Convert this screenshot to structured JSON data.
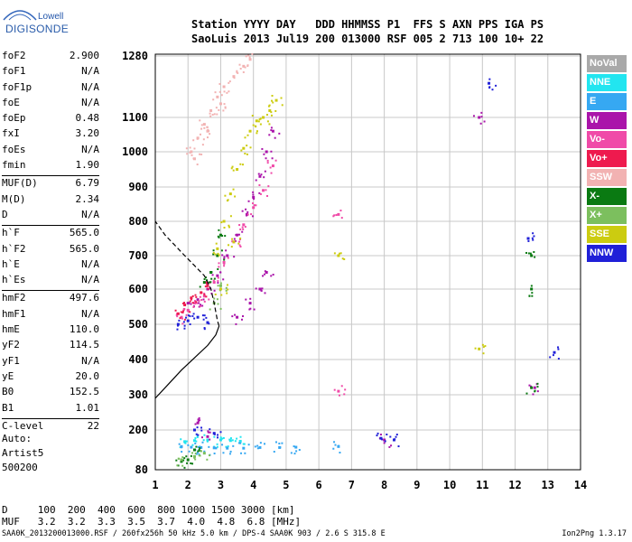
{
  "logo": {
    "line1": "Lowell",
    "line2": "DIGISONDE"
  },
  "header": {
    "row1": "Station YYYY DAY   DDD HHMMSS P1  FFS S AXN PPS IGA PS",
    "row2": "SaoLuis 2013 Jul19 200 013000 RSF 005 2 713 100 10+ 22"
  },
  "params": [
    [
      [
        "foF2",
        "2.900"
      ],
      [
        "foF1",
        "N/A"
      ],
      [
        "foF1p",
        "N/A"
      ],
      [
        "foE",
        "N/A"
      ],
      [
        "foEp",
        "0.48"
      ],
      [
        "fxI",
        "3.20"
      ],
      [
        "foEs",
        "N/A"
      ],
      [
        "fmin",
        "1.90"
      ]
    ],
    [
      [
        "MUF(D)",
        "6.79"
      ],
      [
        "M(D)",
        "2.34"
      ],
      [
        "D",
        "N/A"
      ]
    ],
    [
      [
        "h`F",
        "565.0"
      ],
      [
        "h`F2",
        "565.0"
      ],
      [
        "h`E",
        "N/A"
      ],
      [
        "h`Es",
        "N/A"
      ]
    ],
    [
      [
        "hmF2",
        "497.6"
      ],
      [
        "hmF1",
        "N/A"
      ],
      [
        "hmE",
        "110.0"
      ],
      [
        "yF2",
        "114.5"
      ],
      [
        "yF1",
        "N/A"
      ],
      [
        "yE",
        "20.0"
      ],
      [
        "B0",
        "152.5"
      ],
      [
        "B1",
        "1.01"
      ]
    ],
    [
      [
        "C-level",
        "22"
      ]
    ]
  ],
  "auto": {
    "line1": "Auto:",
    "line2": "Artist5",
    "line3": "500200"
  },
  "muf_table": {
    "row1": "D     100  200  400  600  800 1000 1500 3000 [km]",
    "row2": "MUF   3.2  3.2  3.3  3.5  3.7  4.0  4.8  6.8 [MHz]"
  },
  "footer": {
    "left": "SAA0K_2013200013000.RSF / 260fx256h 50 kHz 5.0 km / DPS-4 SAA0K 903 / 2.6 S 315.8 E",
    "right": "Ion2Png 1.3.17"
  },
  "legend": [
    {
      "label": "NoVal",
      "color": "#a9a9a9"
    },
    {
      "label": "NNE",
      "color": "#22e5f0"
    },
    {
      "label": "E",
      "color": "#36a8f2"
    },
    {
      "label": "W",
      "color": "#aa14aa"
    },
    {
      "label": "Vo-",
      "color": "#f04aa8"
    },
    {
      "label": "Vo+",
      "color": "#ee1a4e"
    },
    {
      "label": "SSW",
      "color": "#f2b2b2"
    },
    {
      "label": "X-",
      "color": "#0a7a12"
    },
    {
      "label": "X+",
      "color": "#7cbf5e"
    },
    {
      "label": "SSE",
      "color": "#cccc10"
    },
    {
      "label": "NNW",
      "color": "#2020d8"
    }
  ],
  "chart_data": {
    "type": "scatter",
    "title": "",
    "xlabel": "",
    "ylabel": "",
    "x_ticks": [
      "1",
      "2",
      "3",
      "4",
      "5",
      "6",
      "7",
      "8",
      "9",
      "10",
      "11",
      "12",
      "13",
      "14"
    ],
    "y_ticks": [
      "80",
      "200",
      "300",
      "400",
      "500",
      "600",
      "700",
      "800",
      "900",
      "1000",
      "1100",
      "1280"
    ],
    "xlim": [
      1,
      14
    ],
    "ylim": [
      80,
      1280
    ],
    "grid": true,
    "series": [
      {
        "name": "NNE",
        "points": [
          [
            1.9,
            165
          ],
          [
            2.2,
            168
          ],
          [
            2.6,
            170
          ],
          [
            3.0,
            170
          ],
          [
            3.3,
            168
          ],
          [
            3.6,
            166
          ]
        ]
      },
      {
        "name": "E",
        "points": [
          [
            1.8,
            150
          ],
          [
            2.1,
            148
          ],
          [
            2.4,
            147
          ],
          [
            2.8,
            146
          ],
          [
            3.2,
            145
          ],
          [
            3.7,
            145
          ],
          [
            4.2,
            147
          ],
          [
            4.8,
            147
          ],
          [
            5.3,
            148
          ],
          [
            6.6,
            150
          ]
        ]
      },
      {
        "name": "W",
        "points": [
          [
            2.0,
            560
          ],
          [
            2.3,
            570
          ],
          [
            2.6,
            600
          ],
          [
            2.9,
            640
          ],
          [
            3.2,
            700
          ],
          [
            3.5,
            760
          ],
          [
            3.8,
            820
          ],
          [
            4.0,
            870
          ],
          [
            4.2,
            930
          ],
          [
            4.4,
            1000
          ],
          [
            4.6,
            1060
          ],
          [
            4.4,
            650
          ],
          [
            4.2,
            600
          ],
          [
            3.9,
            560
          ],
          [
            3.5,
            520
          ],
          [
            2.3,
            220
          ],
          [
            2.6,
            180
          ],
          [
            8.0,
            170
          ],
          [
            10.9,
            1100
          ],
          [
            12.6,
            320
          ]
        ]
      },
      {
        "name": "Vo-",
        "points": [
          [
            1.8,
            520
          ],
          [
            2.0,
            540
          ],
          [
            2.2,
            560
          ],
          [
            2.5,
            580
          ],
          [
            2.8,
            620
          ],
          [
            3.1,
            680
          ],
          [
            3.4,
            740
          ],
          [
            3.7,
            790
          ],
          [
            4.0,
            840
          ],
          [
            4.3,
            890
          ],
          [
            4.6,
            960
          ],
          [
            6.6,
            820
          ],
          [
            6.6,
            310
          ]
        ]
      },
      {
        "name": "Vo+",
        "points": [
          [
            1.7,
            530
          ],
          [
            1.9,
            555
          ],
          [
            2.1,
            575
          ],
          [
            2.4,
            590
          ],
          [
            2.6,
            610
          ]
        ]
      },
      {
        "name": "SSW",
        "points": [
          [
            2.1,
            1000
          ],
          [
            2.3,
            1040
          ],
          [
            2.5,
            1080
          ],
          [
            2.7,
            1120
          ],
          [
            2.9,
            1160
          ],
          [
            3.1,
            1190
          ],
          [
            3.4,
            1220
          ],
          [
            3.7,
            1250
          ],
          [
            3.9,
            1270
          ],
          [
            2.2,
            980
          ],
          [
            2.6,
            1060
          ],
          [
            3.0,
            1140
          ]
        ]
      },
      {
        "name": "X-",
        "points": [
          [
            1.8,
            105
          ],
          [
            2.0,
            110
          ],
          [
            2.2,
            140
          ],
          [
            2.5,
            620
          ],
          [
            2.7,
            650
          ],
          [
            2.9,
            700
          ],
          [
            3.0,
            760
          ],
          [
            12.5,
            700
          ],
          [
            12.5,
            600
          ],
          [
            12.5,
            320
          ]
        ]
      },
      {
        "name": "X+",
        "points": [
          [
            1.8,
            110
          ],
          [
            2.2,
            120
          ],
          [
            2.5,
            130
          ],
          [
            2.8,
            560
          ],
          [
            3.0,
            610
          ]
        ]
      },
      {
        "name": "SSE",
        "points": [
          [
            2.9,
            720
          ],
          [
            3.1,
            800
          ],
          [
            3.3,
            880
          ],
          [
            3.5,
            950
          ],
          [
            3.7,
            1010
          ],
          [
            3.9,
            1060
          ],
          [
            4.1,
            1090
          ],
          [
            4.3,
            1100
          ],
          [
            4.5,
            1120
          ],
          [
            4.7,
            1150
          ],
          [
            3.4,
            740
          ],
          [
            3.0,
            600
          ],
          [
            6.6,
            700
          ],
          [
            10.9,
            430
          ]
        ]
      },
      {
        "name": "NNW",
        "points": [
          [
            1.7,
            500
          ],
          [
            2.0,
            510
          ],
          [
            2.3,
            520
          ],
          [
            2.6,
            505
          ],
          [
            2.2,
            200
          ],
          [
            2.8,
            190
          ],
          [
            7.9,
            175
          ],
          [
            8.3,
            170
          ],
          [
            11.2,
            1200
          ],
          [
            12.4,
            750
          ],
          [
            13.2,
            420
          ]
        ]
      }
    ],
    "profile_curve": [
      [
        1.0,
        290
      ],
      [
        1.4,
        330
      ],
      [
        1.8,
        370
      ],
      [
        2.2,
        405
      ],
      [
        2.6,
        440
      ],
      [
        2.85,
        470
      ],
      [
        2.95,
        495
      ],
      [
        2.9,
        510
      ],
      [
        2.8,
        560
      ],
      [
        2.7,
        600
      ],
      [
        2.5,
        640
      ],
      [
        2.2,
        670
      ],
      [
        1.9,
        700
      ],
      [
        1.6,
        730
      ],
      [
        1.3,
        760
      ],
      [
        1.0,
        800
      ]
    ]
  }
}
